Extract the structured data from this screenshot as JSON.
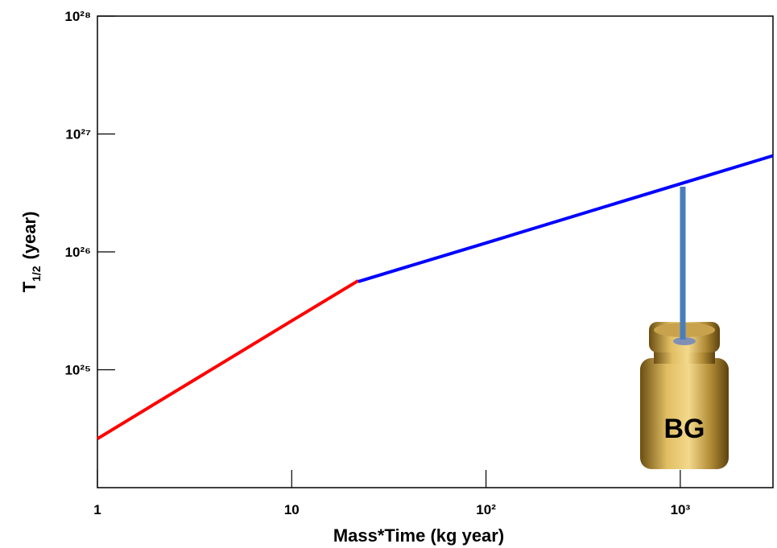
{
  "chart_data": {
    "type": "line",
    "x_label": "Mass*Time (kg year)",
    "y_label": [
      "T",
      "1/2",
      "(year)"
    ],
    "annotation": "BG",
    "log_x": true,
    "log_y": true,
    "xlim": [
      1,
      3000
    ],
    "ylim": [
      1e+24,
      1e+28
    ],
    "xticks": [
      1,
      10,
      {
        "value": 100,
        "label": "10²"
      },
      {
        "value": 1000,
        "label": "10³"
      }
    ],
    "yticks": [
      {
        "value": 1e+25,
        "label": "10²⁵"
      },
      {
        "value": 1e+26,
        "label": "10²⁶"
      },
      {
        "value": 1e+27,
        "label": "10²⁷"
      },
      {
        "value": 1e+28,
        "label": "10²⁸"
      }
    ],
    "series": [
      {
        "color": "#ff0000",
        "x": [
          1,
          2,
          5,
          10,
          22
        ],
        "values": [
          2.6e+24,
          5.2e+24,
          1.3e+25,
          2.6e+25,
          5.7e+25
        ]
      },
      {
        "color": "#0000ff",
        "x": [
          22,
          100,
          1000,
          3000
        ],
        "values": [
          5.6e+25,
          1.19e+26,
          3.78e+26,
          6.54e+26
        ]
      }
    ]
  }
}
